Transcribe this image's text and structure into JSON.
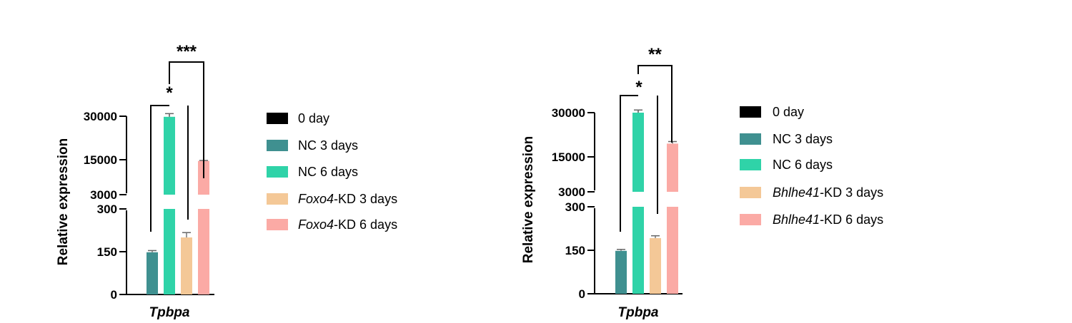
{
  "chart_data": [
    {
      "type": "bar",
      "ylabel": "Relative expression",
      "categories": [
        "Tpbpa"
      ],
      "y_ticks": [
        "0",
        "150",
        "300",
        "3000",
        "15000",
        "30000"
      ],
      "y_axis_break": [
        300,
        3000
      ],
      "series": [
        {
          "name": "0 day",
          "value": 0,
          "error": 0,
          "color": "#000000"
        },
        {
          "name": "NC 3 days",
          "value": 148,
          "error": 6,
          "color": "#3f9090"
        },
        {
          "name": "NC 6 days",
          "value": 29800,
          "error": 1100,
          "color": "#2fd3a8"
        },
        {
          "name": "Foxo4-KD 3 days",
          "value": 200,
          "error": 17,
          "color": "#f4c897"
        },
        {
          "name": "Foxo4-KD 6 days",
          "value": 14600,
          "error": 150,
          "color": "#fbaaa5"
        }
      ],
      "legend": [
        {
          "italic": "",
          "text": "0 day"
        },
        {
          "italic": "",
          "text": "NC 3 days"
        },
        {
          "italic": "",
          "text": "NC 6 days"
        },
        {
          "italic": "Foxo4",
          "text": "-KD 3 days"
        },
        {
          "italic": "Foxo4",
          "text": "-KD 6 days"
        }
      ],
      "significance": [
        {
          "label": "*",
          "between": [
            "0 day",
            "NC 6 days"
          ]
        },
        {
          "label": "***",
          "between": [
            "NC 6 days",
            "Foxo4-KD 6 days"
          ]
        }
      ]
    },
    {
      "type": "bar",
      "ylabel": "Relative expression",
      "categories": [
        "Tpbpa"
      ],
      "y_ticks": [
        "0",
        "150",
        "300",
        "3000",
        "15000",
        "30000"
      ],
      "y_axis_break": [
        300,
        3000
      ],
      "series": [
        {
          "name": "0 day",
          "value": 0,
          "error": 0,
          "color": "#000000"
        },
        {
          "name": "NC 3 days",
          "value": 148,
          "error": 5,
          "color": "#3f9090"
        },
        {
          "name": "NC 6 days",
          "value": 30000,
          "error": 900,
          "color": "#2fd3a8"
        },
        {
          "name": "Bhlhe41-KD 3 days",
          "value": 192,
          "error": 8,
          "color": "#f4c897"
        },
        {
          "name": "Bhlhe41-KD 6 days",
          "value": 19500,
          "error": 700,
          "color": "#fbaaa5"
        }
      ],
      "legend": [
        {
          "italic": "",
          "text": "0 day"
        },
        {
          "italic": "",
          "text": "NC 3 days"
        },
        {
          "italic": "",
          "text": "NC 6 days"
        },
        {
          "italic": "Bhlhe41",
          "text": "-KD 3 days"
        },
        {
          "italic": "Bhlhe41",
          "text": "-KD 6 days"
        }
      ],
      "significance": [
        {
          "label": "*",
          "between": [
            "0 day",
            "NC 6 days"
          ]
        },
        {
          "label": "**",
          "between": [
            "NC 6 days",
            "Bhlhe41-KD 6 days"
          ]
        }
      ]
    }
  ]
}
